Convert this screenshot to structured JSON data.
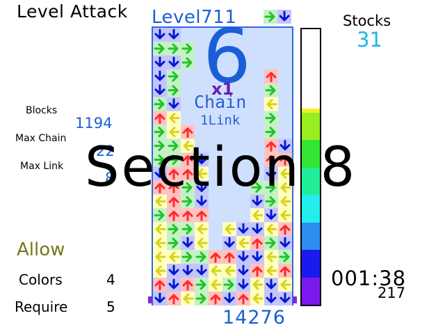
{
  "mode_title": "Level Attack",
  "level": {
    "label": "Level",
    "value": "711"
  },
  "stats": {
    "blocks_label": "Blocks",
    "blocks_value": "1194",
    "max_chain_label": "Max Chain",
    "max_chain_value": "22",
    "max_link_label": "Max Link",
    "max_link_value": "8"
  },
  "stocks": {
    "label": "Stocks",
    "value": "31"
  },
  "allow": {
    "title": "Allow",
    "colors_label": "Colors",
    "colors_value": "4",
    "require_label": "Require",
    "require_value": "5"
  },
  "timer": {
    "time": "001:38",
    "frames": "217"
  },
  "score": "14276",
  "chain_display": {
    "count": "6",
    "multiplier": "x1",
    "chain_label": "Chain",
    "link_label": "1Link"
  },
  "section_banner": "Section 8",
  "gauge": {
    "fill_fraction": 0.71
  },
  "colors": {
    "up": "#ff2a2a",
    "up_bg": "#ffc2c2",
    "down": "#0018cc",
    "down_bg": "#c4c4ff",
    "right": "#22c22a",
    "right_bg": "#c4f2c4",
    "left": "#d9d41a",
    "left_bg": "#ffffc0"
  },
  "next_piece": [
    "right",
    "down"
  ],
  "field": {
    "cols": 10,
    "rows": 20,
    "tiles": [
      "dd........",
      "rrr.......",
      "ddr.......",
      "dr......u.",
      "dr......r.",
      "rd......l.",
      "ul......r.",
      "rlu.....r.",
      "rrl.....ud",
      "rrud....uu",
      "duul....dl",
      "uurd...rrl",
      "lurd...drl",
      "ruuu...ldl",
      "lrrl.lddlu",
      "lrdl.dlurd",
      "llrruuddlr",
      "ldddlldulu",
      "udurlrdldl",
      "dulruduldd"
    ]
  }
}
